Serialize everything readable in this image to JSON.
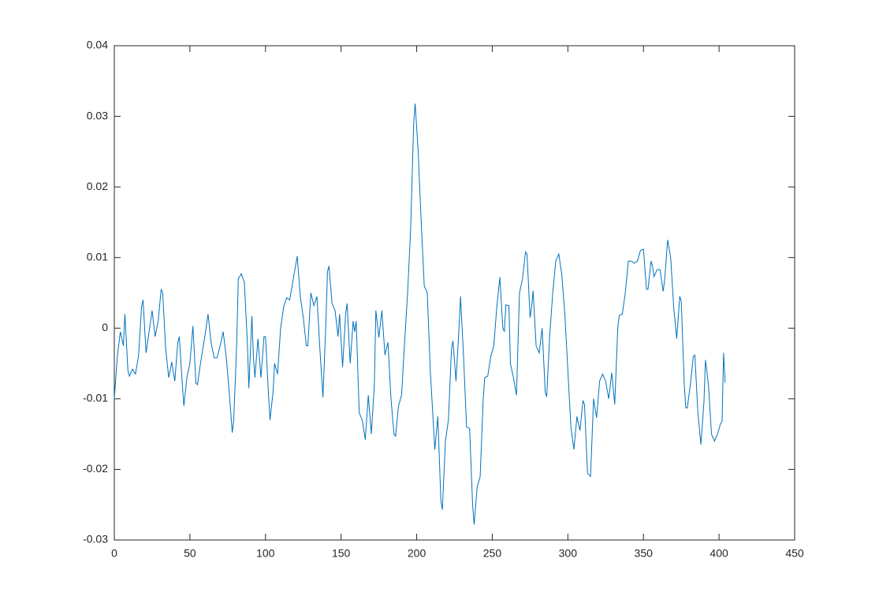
{
  "chart_data": {
    "type": "line",
    "x": [
      0,
      2,
      4,
      6,
      7,
      9,
      10,
      12,
      14,
      16,
      18,
      19,
      21,
      23,
      25,
      27,
      29,
      31,
      32,
      34,
      36,
      38,
      40,
      42,
      43,
      45,
      46,
      48,
      50,
      52,
      54,
      55,
      57,
      60,
      62,
      64,
      66,
      68,
      70,
      72,
      74,
      76,
      78,
      79,
      81,
      82,
      84,
      86,
      88,
      89,
      91,
      92,
      93,
      95,
      97,
      99,
      100,
      102,
      103,
      105,
      106,
      108,
      110,
      112,
      114,
      116,
      118,
      121,
      123,
      125,
      127,
      128,
      130,
      132,
      134,
      136,
      138,
      140,
      141,
      142,
      144,
      146,
      148,
      149,
      151,
      153,
      154,
      156,
      158,
      159,
      160,
      162,
      164,
      166,
      168,
      170,
      172,
      173,
      175,
      177,
      179,
      181,
      183,
      185,
      186,
      188,
      190,
      192,
      194,
      196,
      198,
      199,
      201,
      203,
      205,
      207,
      209,
      212,
      214,
      216,
      217,
      219,
      221,
      223,
      224,
      226,
      228,
      229,
      231,
      233,
      235,
      237,
      238,
      240,
      242,
      244,
      245,
      247,
      249,
      251,
      253,
      255,
      257,
      258,
      259,
      261,
      262,
      264,
      266,
      268,
      270,
      272,
      273,
      275,
      276,
      277,
      279,
      281,
      283,
      285,
      286,
      288,
      290,
      292,
      294,
      296,
      298,
      300,
      302,
      304,
      306,
      308,
      310,
      311,
      313,
      315,
      317,
      319,
      321,
      323,
      325,
      327,
      329,
      331,
      333,
      334,
      336,
      338,
      340,
      342,
      344,
      346,
      348,
      350,
      352,
      353,
      355,
      356,
      357,
      359,
      361,
      363,
      364,
      366,
      368,
      370,
      372,
      374,
      375,
      377,
      378,
      379,
      381,
      383,
      384,
      386,
      388,
      390,
      391,
      393,
      395,
      397,
      399,
      401,
      402,
      403,
      404
    ],
    "series": [
      {
        "color": "#0072bd",
        "values": [
          -0.01,
          -0.004,
          -0.0005,
          -0.0025,
          0.002,
          -0.006,
          -0.0068,
          -0.0058,
          -0.0065,
          -0.004,
          0.003,
          0.004,
          -0.0035,
          -0.0005,
          0.0025,
          -0.0012,
          0.001,
          0.0055,
          0.005,
          -0.003,
          -0.007,
          -0.0048,
          -0.0075,
          -0.002,
          -0.0012,
          -0.008,
          -0.011,
          -0.007,
          -0.005,
          0.0003,
          -0.0078,
          -0.008,
          -0.005,
          -0.001,
          0.002,
          -0.002,
          -0.0042,
          -0.0042,
          -0.0025,
          -0.0005,
          -0.004,
          -0.009,
          -0.0148,
          -0.013,
          -0.002,
          0.007,
          0.0077,
          0.0065,
          -0.002,
          -0.0085,
          0.0017,
          -0.004,
          -0.007,
          -0.0015,
          -0.007,
          -0.0012,
          -0.0012,
          -0.0095,
          -0.013,
          -0.009,
          -0.005,
          -0.0065,
          0.0,
          0.003,
          0.0043,
          0.004,
          0.0065,
          0.0102,
          0.0045,
          0.0015,
          -0.0025,
          -0.0025,
          0.005,
          0.0032,
          0.0045,
          -0.003,
          -0.0098,
          0.001,
          0.008,
          0.0088,
          0.0035,
          0.0025,
          -0.0012,
          0.002,
          -0.0055,
          0.002,
          0.0035,
          -0.005,
          0.001,
          -0.0005,
          0.001,
          -0.012,
          -0.013,
          -0.0158,
          -0.0095,
          -0.015,
          -0.008,
          0.0025,
          -0.0013,
          0.0025,
          -0.0038,
          -0.002,
          -0.01,
          -0.015,
          -0.0153,
          -0.011,
          -0.0095,
          -0.002,
          0.005,
          0.014,
          0.029,
          0.0318,
          0.025,
          0.015,
          0.006,
          0.005,
          -0.006,
          -0.0172,
          -0.0125,
          -0.0245,
          -0.0257,
          -0.016,
          -0.013,
          -0.003,
          -0.0018,
          -0.0075,
          0.0,
          0.0045,
          -0.004,
          -0.014,
          -0.0142,
          -0.025,
          -0.0278,
          -0.0225,
          -0.021,
          -0.01,
          -0.007,
          -0.0068,
          -0.004,
          -0.0025,
          0.003,
          0.0072,
          0.0,
          -0.0005,
          0.0033,
          0.0032,
          -0.005,
          -0.007,
          -0.0095,
          0.005,
          0.007,
          0.0108,
          0.0105,
          0.0015,
          0.003,
          0.0053,
          -0.0025,
          -0.0035,
          0.0,
          -0.009,
          -0.0097,
          -0.001,
          0.005,
          0.0095,
          0.0105,
          0.0075,
          0.002,
          -0.006,
          -0.014,
          -0.0172,
          -0.0125,
          -0.0145,
          -0.0103,
          -0.0108,
          -0.0205,
          -0.021,
          -0.01,
          -0.0127,
          -0.0075,
          -0.0065,
          -0.0075,
          -0.01,
          -0.0063,
          -0.0108,
          0.0,
          0.0018,
          0.002,
          0.005,
          0.0095,
          0.0095,
          0.0092,
          0.0095,
          0.011,
          0.0112,
          0.0055,
          0.0055,
          0.0095,
          0.0088,
          0.0073,
          0.0083,
          0.0083,
          0.0052,
          0.0068,
          0.0125,
          0.01,
          0.003,
          -0.0015,
          0.0045,
          0.0038,
          -0.008,
          -0.0113,
          -0.0113,
          -0.008,
          -0.004,
          -0.0038,
          -0.012,
          -0.0165,
          -0.0105,
          -0.0045,
          -0.008,
          -0.015,
          -0.016,
          -0.015,
          -0.0135,
          -0.0132,
          -0.0035,
          -0.0077
        ]
      }
    ],
    "xlim": [
      0,
      450
    ],
    "xticks": [
      0,
      50,
      100,
      150,
      200,
      250,
      300,
      350,
      400,
      450
    ],
    "ylim": [
      -0.03,
      0.04
    ],
    "yticks": [
      -0.03,
      -0.02,
      -0.01,
      0,
      0.01,
      0.02,
      0.03,
      0.04
    ]
  }
}
